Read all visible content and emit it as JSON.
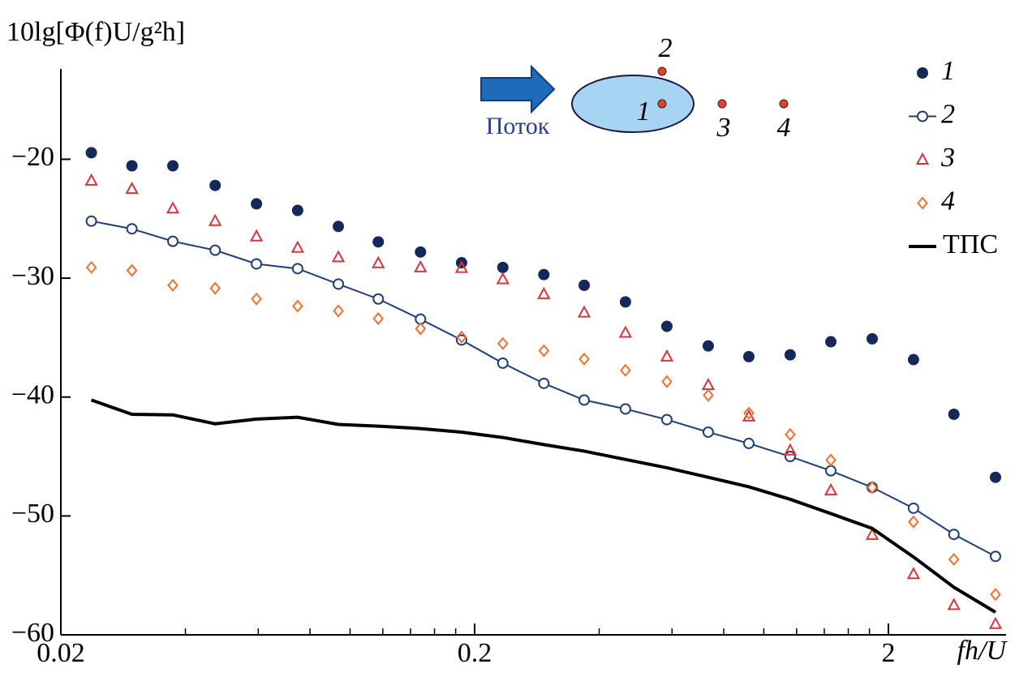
{
  "chart_data": {
    "type": "line",
    "y_label": "10lg[Φ(f)U/g²h]",
    "x_label": "fh/U",
    "log_x": true,
    "xlim": [
      0.02,
      3.85
    ],
    "xticks": [
      0.02,
      0.2,
      2
    ],
    "xminor_ticks": [
      0.04,
      0.06,
      0.08,
      0.1,
      0.12,
      0.14,
      0.16,
      0.18,
      0.4,
      0.6,
      0.8,
      1,
      1.2,
      1.4,
      1.6,
      1.8
    ],
    "ylim": [
      -60,
      -12.4
    ],
    "yticks": [
      {
        "value": -20,
        "label": "−20"
      },
      {
        "value": -30,
        "label": "−30"
      },
      {
        "value": -40,
        "label": "−40"
      },
      {
        "value": -50,
        "label": "−50"
      },
      {
        "value": -60,
        "label": "−60"
      }
    ],
    "legend": "upper right",
    "x": [
      0.0237,
      0.0297,
      0.0373,
      0.0472,
      0.0594,
      0.0747,
      0.0937,
      0.117,
      0.148,
      0.186,
      0.234,
      0.294,
      0.368,
      0.463,
      0.583,
      0.734,
      0.92,
      1.158,
      1.452,
      1.828,
      2.3,
      2.88,
      3.63
    ],
    "series": [
      {
        "name": "1",
        "color": "#14295a",
        "marker": "circle-filled",
        "line": false,
        "values": [
          -19.45,
          -20.55,
          -20.55,
          -22.2,
          -23.75,
          -24.3,
          -25.65,
          -26.95,
          -27.8,
          -28.7,
          -29.1,
          -29.7,
          -30.6,
          -32.0,
          -34.05,
          -35.7,
          -36.6,
          -36.45,
          -35.35,
          -35.1,
          -36.85,
          -41.45,
          -46.75
        ]
      },
      {
        "name": "2",
        "color": "#1f3f7a",
        "marker": "circle-open",
        "line": true,
        "values": [
          -25.2,
          -25.85,
          -26.9,
          -27.65,
          -28.8,
          -29.2,
          -30.5,
          -31.75,
          -33.45,
          -35.2,
          -37.15,
          -38.85,
          -40.25,
          -41.0,
          -41.9,
          -42.95,
          -43.9,
          -45.0,
          -46.2,
          -47.6,
          -49.35,
          -51.55,
          -53.4
        ]
      },
      {
        "name": "3",
        "color": "#d9343a",
        "marker": "triangle-open",
        "line": false,
        "values": [
          -21.8,
          -22.5,
          -24.15,
          -25.2,
          -26.5,
          -27.45,
          -28.25,
          -28.75,
          -29.1,
          -29.15,
          -30.1,
          -31.35,
          -32.9,
          -34.6,
          -36.6,
          -39.0,
          -41.65,
          -44.5,
          -47.85,
          -51.6,
          -54.9,
          -57.5,
          -59.1
        ]
      },
      {
        "name": "4",
        "color": "#f07030",
        "marker": "diamond-open",
        "line": false,
        "values": [
          -29.1,
          -29.35,
          -30.6,
          -30.85,
          -31.75,
          -32.35,
          -32.75,
          -33.4,
          -34.25,
          -34.95,
          -35.5,
          -36.1,
          -36.8,
          -37.75,
          -38.7,
          -39.85,
          -41.35,
          -43.15,
          -45.3,
          -47.6,
          -50.5,
          -53.65,
          -56.6
        ]
      },
      {
        "name": "ТПС",
        "color": "#000000",
        "marker": "none",
        "line": true,
        "values": [
          -40.25,
          -41.45,
          -41.5,
          -42.25,
          -41.85,
          -41.7,
          -42.3,
          -42.45,
          -42.65,
          -42.95,
          -43.4,
          -44.0,
          -44.55,
          -45.25,
          -45.95,
          -46.75,
          -47.55,
          -48.6,
          -49.8,
          -51.05,
          -53.45,
          -56.0,
          -58.1
        ]
      }
    ],
    "inset": {
      "flow_label": "Поток",
      "point_labels": [
        "1",
        "2",
        "3",
        "4"
      ]
    }
  }
}
